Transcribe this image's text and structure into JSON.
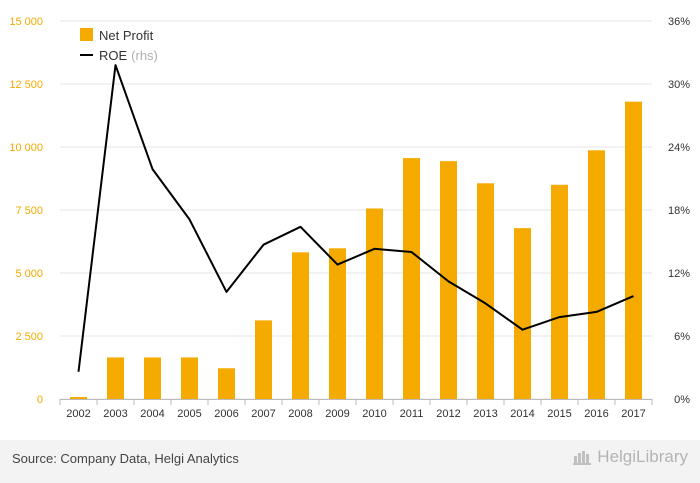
{
  "chart_data": {
    "type": "bar",
    "categories": [
      "2002",
      "2003",
      "2004",
      "2005",
      "2006",
      "2007",
      "2008",
      "2009",
      "2010",
      "2011",
      "2012",
      "2013",
      "2014",
      "2015",
      "2016",
      "2017"
    ],
    "series": [
      {
        "name": "Net Profit",
        "type": "bar",
        "axis": "left",
        "color": "#f5aa00",
        "values": [
          80,
          1650,
          1650,
          1650,
          1220,
          3120,
          5820,
          5980,
          7560,
          9560,
          9440,
          8560,
          6780,
          8500,
          9870,
          11800
        ]
      },
      {
        "name": "ROE",
        "name_suffix": "(rhs)",
        "type": "line",
        "axis": "right",
        "color": "#000000",
        "values": [
          2.6,
          31.8,
          21.9,
          17.1,
          10.2,
          14.7,
          16.4,
          12.8,
          14.3,
          14.0,
          11.2,
          9.1,
          6.6,
          7.8,
          8.3,
          9.8
        ]
      }
    ],
    "y_left": {
      "ylim": [
        0,
        15000
      ],
      "ticks": [
        "0",
        "2 500",
        "5 000",
        "7 500",
        "10 000",
        "12 500",
        "15 000"
      ],
      "tick_color": "#f5aa00"
    },
    "y_right": {
      "ylim": [
        0,
        36
      ],
      "ticks": [
        "0%",
        "6%",
        "12%",
        "18%",
        "24%",
        "30%",
        "36%"
      ]
    },
    "grid": true,
    "legend_position": "top-left"
  },
  "footer": {
    "source": "Source: Company Data, Helgi Analytics",
    "brand": "HelgiLibrary"
  }
}
